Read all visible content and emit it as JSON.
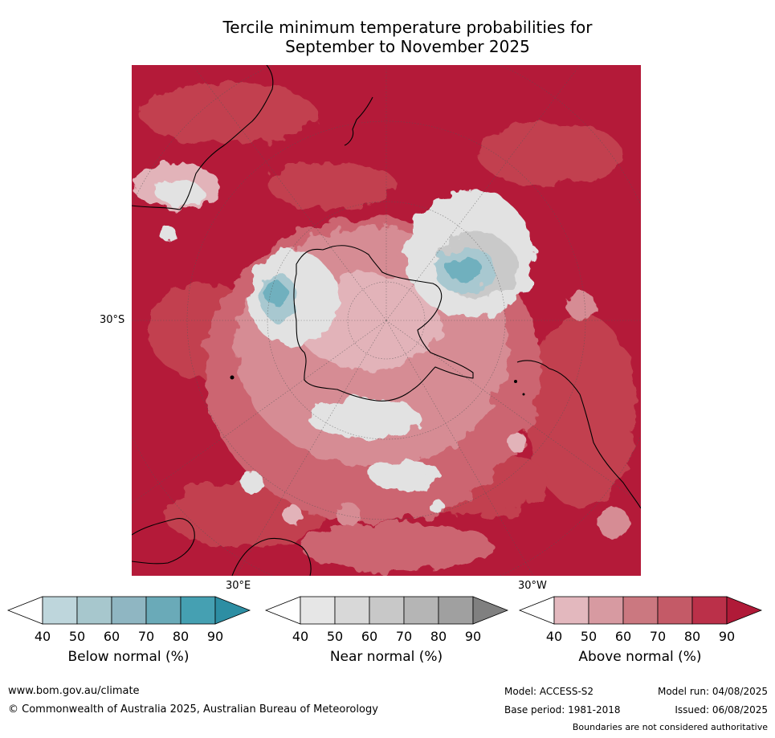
{
  "title": {
    "line1": "Tercile minimum temperature probabilities for",
    "line2": "September to November 2025"
  },
  "map": {
    "lat_label": "30°S",
    "lon_label_east": "30°E",
    "lon_label_west": "30°W",
    "colors": {
      "above_90": "#b41a39",
      "above_80": "#c2404f",
      "above_70": "#cc6571",
      "above_60": "#d68c94",
      "above_50": "#e2b3b9",
      "near_50": "#e2e2e2",
      "near_70": "#c9c9c9",
      "below_50": "#a8c8d0",
      "below_70": "#6fb0be",
      "land_outline": "#000000"
    }
  },
  "legends": [
    {
      "label": "Below normal (%)",
      "ticks": [
        "40",
        "50",
        "60",
        "70",
        "80",
        "90"
      ],
      "colors": [
        "#ffffff",
        "#bed6dc",
        "#a7c7cd",
        "#8fb6c2",
        "#6aaab8",
        "#45a0b2",
        "#2d8ea3"
      ]
    },
    {
      "label": "Near normal (%)",
      "ticks": [
        "40",
        "50",
        "60",
        "70",
        "80",
        "90"
      ],
      "colors": [
        "#ffffff",
        "#e6e6e6",
        "#d8d8d8",
        "#c8c8c8",
        "#b5b5b5",
        "#a0a0a0",
        "#808080"
      ]
    },
    {
      "label": "Above normal (%)",
      "ticks": [
        "40",
        "50",
        "60",
        "70",
        "80",
        "90"
      ],
      "colors": [
        "#ffffff",
        "#e3b8be",
        "#d79aa1",
        "#cb7880",
        "#c45a67",
        "#bb3049",
        "#b01a38"
      ]
    }
  ],
  "footer": {
    "website": "www.bom.gov.au/climate",
    "copyright": "© Commonwealth of Australia 2025, Australian Bureau of Meteorology",
    "model": "Model: ACCESS-S2",
    "model_run": "Model run: 04/08/2025",
    "base_period": "Base period: 1981-2018",
    "issued": "Issued: 06/08/2025",
    "disclaimer": "Boundaries are not considered authoritative"
  }
}
